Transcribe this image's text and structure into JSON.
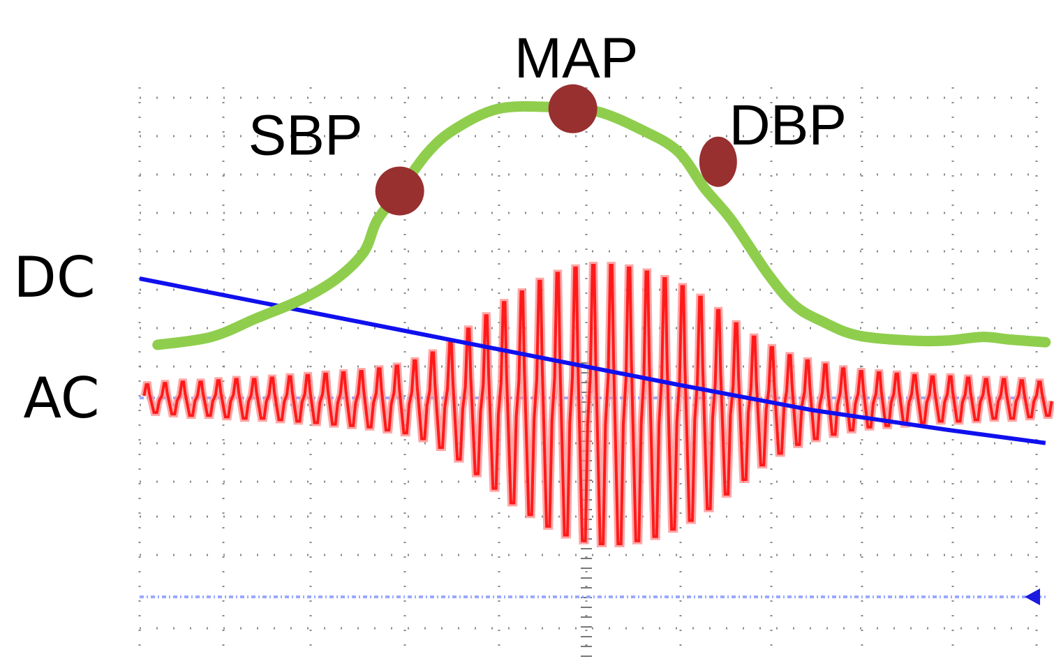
{
  "chart_data": {
    "type": "line",
    "title": "",
    "xlabel": "",
    "ylabel": "",
    "xlim": [
      0,
      100
    ],
    "ylim": [
      0,
      100
    ],
    "grid": true,
    "channel_labels": [
      {
        "key": "dc",
        "text": "DC"
      },
      {
        "key": "ac",
        "text": "AC"
      }
    ],
    "markers": [
      {
        "key": "sbp",
        "label": "SBP",
        "x": 29.0,
        "y": 76.5
      },
      {
        "key": "map",
        "label": "MAP",
        "x": 48.3,
        "y": 92.0
      },
      {
        "key": "dbp",
        "label": "DBP",
        "x": 64.5,
        "y": 82.0
      }
    ],
    "series": [
      {
        "key": "envelope",
        "color": "#8fce4d",
        "x": [
          2,
          8,
          13,
          18,
          22,
          25,
          26.5,
          29,
          32,
          35,
          40,
          46,
          51,
          56,
          60,
          63,
          66,
          70,
          73,
          76,
          80,
          86,
          90,
          94,
          97,
          101
        ],
        "y": [
          47.5,
          49,
          52.5,
          56,
          60,
          65,
          71,
          76.5,
          83.5,
          88,
          92,
          92.3,
          91.5,
          88,
          84,
          77,
          71,
          61,
          55,
          52,
          49.3,
          48.3,
          48.3,
          49,
          48.5,
          48
        ]
      },
      {
        "key": "dc",
        "color": "#1010ee",
        "x": [
          0,
          15,
          30,
          45,
          60,
          75,
          90,
          101
        ],
        "y": [
          60,
          55,
          50,
          45,
          40,
          35.2,
          31.5,
          29
        ]
      },
      {
        "key": "ac",
        "color": "#ff1a1a",
        "baseline": 37.5,
        "beats": {
          "count": 51,
          "x_start": 0.5,
          "x_end": 100,
          "amplitude": [
            5,
            5.5,
            6,
            6,
            6.5,
            7,
            7,
            7.5,
            8,
            8.5,
            9,
            9.5,
            10,
            11,
            12,
            14,
            17,
            21,
            26,
            31,
            36,
            40,
            44,
            47,
            49,
            50,
            50,
            49,
            47.5,
            45,
            42,
            38,
            33,
            28,
            23,
            19,
            16,
            14,
            12.5,
            11,
            10,
            9.5,
            9,
            8.5,
            8,
            8,
            7.5,
            7,
            7,
            6.5,
            6
          ]
        }
      },
      {
        "key": "ac_reference",
        "color": "#9aa8ff",
        "x": [
          0,
          101
        ],
        "y": [
          37.5,
          37.5
        ]
      },
      {
        "key": "dc_reference",
        "color": "#9aa8ff",
        "x": [
          0,
          101
        ],
        "y": [
          0,
          0
        ]
      }
    ]
  }
}
